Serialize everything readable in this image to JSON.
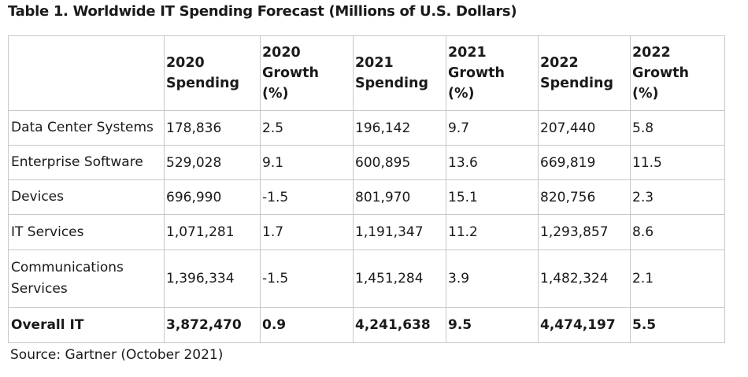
{
  "title": "Table 1. Worldwide IT Spending Forecast (Millions of U.S. Dollars)",
  "table": {
    "header": [
      [
        "2020",
        "Spending"
      ],
      [
        "2020",
        "Growth",
        "(%)"
      ],
      [
        "2021",
        "Spending"
      ],
      [
        "2021",
        "Growth",
        "(%)"
      ],
      [
        "2022",
        "Spending"
      ],
      [
        "2022",
        "Growth",
        "(%)"
      ]
    ],
    "rows": [
      [
        "Data Center Systems",
        "178,836",
        "2.5",
        "196,142",
        "9.7",
        "207,440",
        "5.8"
      ],
      [
        "Enterprise Software",
        "529,028",
        "9.1",
        "600,895",
        "13.6",
        "669,819",
        "11.5"
      ],
      [
        "Devices",
        "696,990",
        "-1.5",
        "801,970",
        "15.1",
        "820,756",
        "2.3"
      ],
      [
        "IT Services",
        "1,071,281",
        "1.7",
        "1,191,347",
        "11.2",
        "1,293,857",
        "8.6"
      ],
      [
        "Communications Services",
        "1,396,334",
        "-1.5",
        "1,451,284",
        "3.9",
        "1,482,324",
        "2.1"
      ],
      [
        "Overall IT",
        "3,872,470",
        "0.9",
        "4,241,638",
        "9.5",
        "4,474,197",
        "5.5"
      ]
    ]
  },
  "source": "Source: Gartner (October 2021)"
}
